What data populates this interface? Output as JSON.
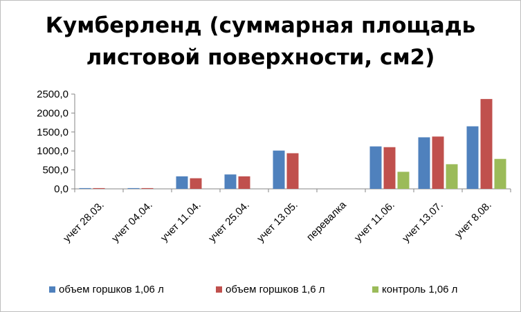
{
  "chart_data": {
    "type": "bar",
    "title_line1": "Кумберленд (суммарная площадь",
    "title_line2": "листовой поверхности, см2)",
    "categories": [
      "учет 28.03.",
      "учет 04.04.",
      "учет 11.04.",
      "учет 25.04.",
      "учет 13.05.",
      "перевалка",
      "учет 11.06.",
      "учет 13.07.",
      "учет 8.08."
    ],
    "series": [
      {
        "name": "объем горшков 1,06 л",
        "color": "#4f81bd",
        "values": [
          20,
          20,
          330,
          380,
          1010,
          null,
          1120,
          1360,
          1650
        ]
      },
      {
        "name": "объем горшков 1,6 л",
        "color": "#c0504d",
        "values": [
          20,
          20,
          280,
          330,
          940,
          null,
          1100,
          1380,
          2370
        ]
      },
      {
        "name": "контроль 1,06 л",
        "color": "#9bbb59",
        "values": [
          null,
          null,
          null,
          null,
          null,
          null,
          450,
          650,
          790
        ]
      }
    ],
    "y_ticks": [
      "0,0",
      "500,0",
      "1000,0",
      "1500,0",
      "2000,0",
      "2500,0"
    ],
    "ylim": [
      0,
      2500
    ],
    "grid": false,
    "legend": "bottom"
  }
}
